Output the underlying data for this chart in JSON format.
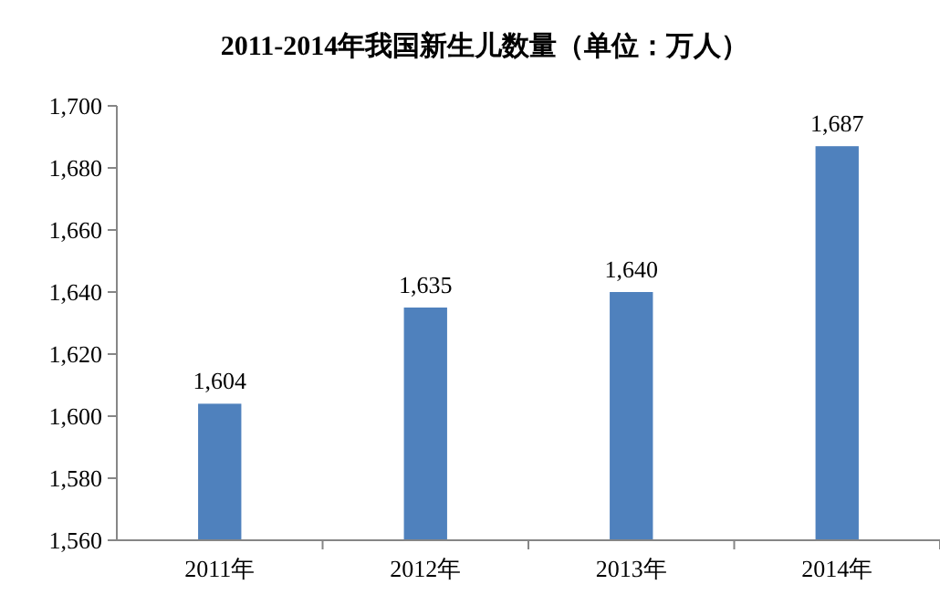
{
  "chart_data": {
    "type": "bar",
    "title": "2011-2014年我国新生儿数量（单位：万人）",
    "categories": [
      "2011年",
      "2012年",
      "2013年",
      "2014年"
    ],
    "values": [
      1604,
      1635,
      1640,
      1687
    ],
    "value_labels": [
      "1,604",
      "1,635",
      "1,640",
      "1,687"
    ],
    "color": "#4f81bd",
    "ylim": [
      1560,
      1700
    ],
    "yticks": [
      {
        "value": 1560,
        "label": "1,560"
      },
      {
        "value": 1580,
        "label": "1,580"
      },
      {
        "value": 1600,
        "label": "1,600"
      },
      {
        "value": 1620,
        "label": "1,620"
      },
      {
        "value": 1640,
        "label": "1,640"
      },
      {
        "value": 1660,
        "label": "1,660"
      },
      {
        "value": 1680,
        "label": "1,680"
      },
      {
        "value": 1700,
        "label": "1,700"
      }
    ],
    "grid": false
  }
}
